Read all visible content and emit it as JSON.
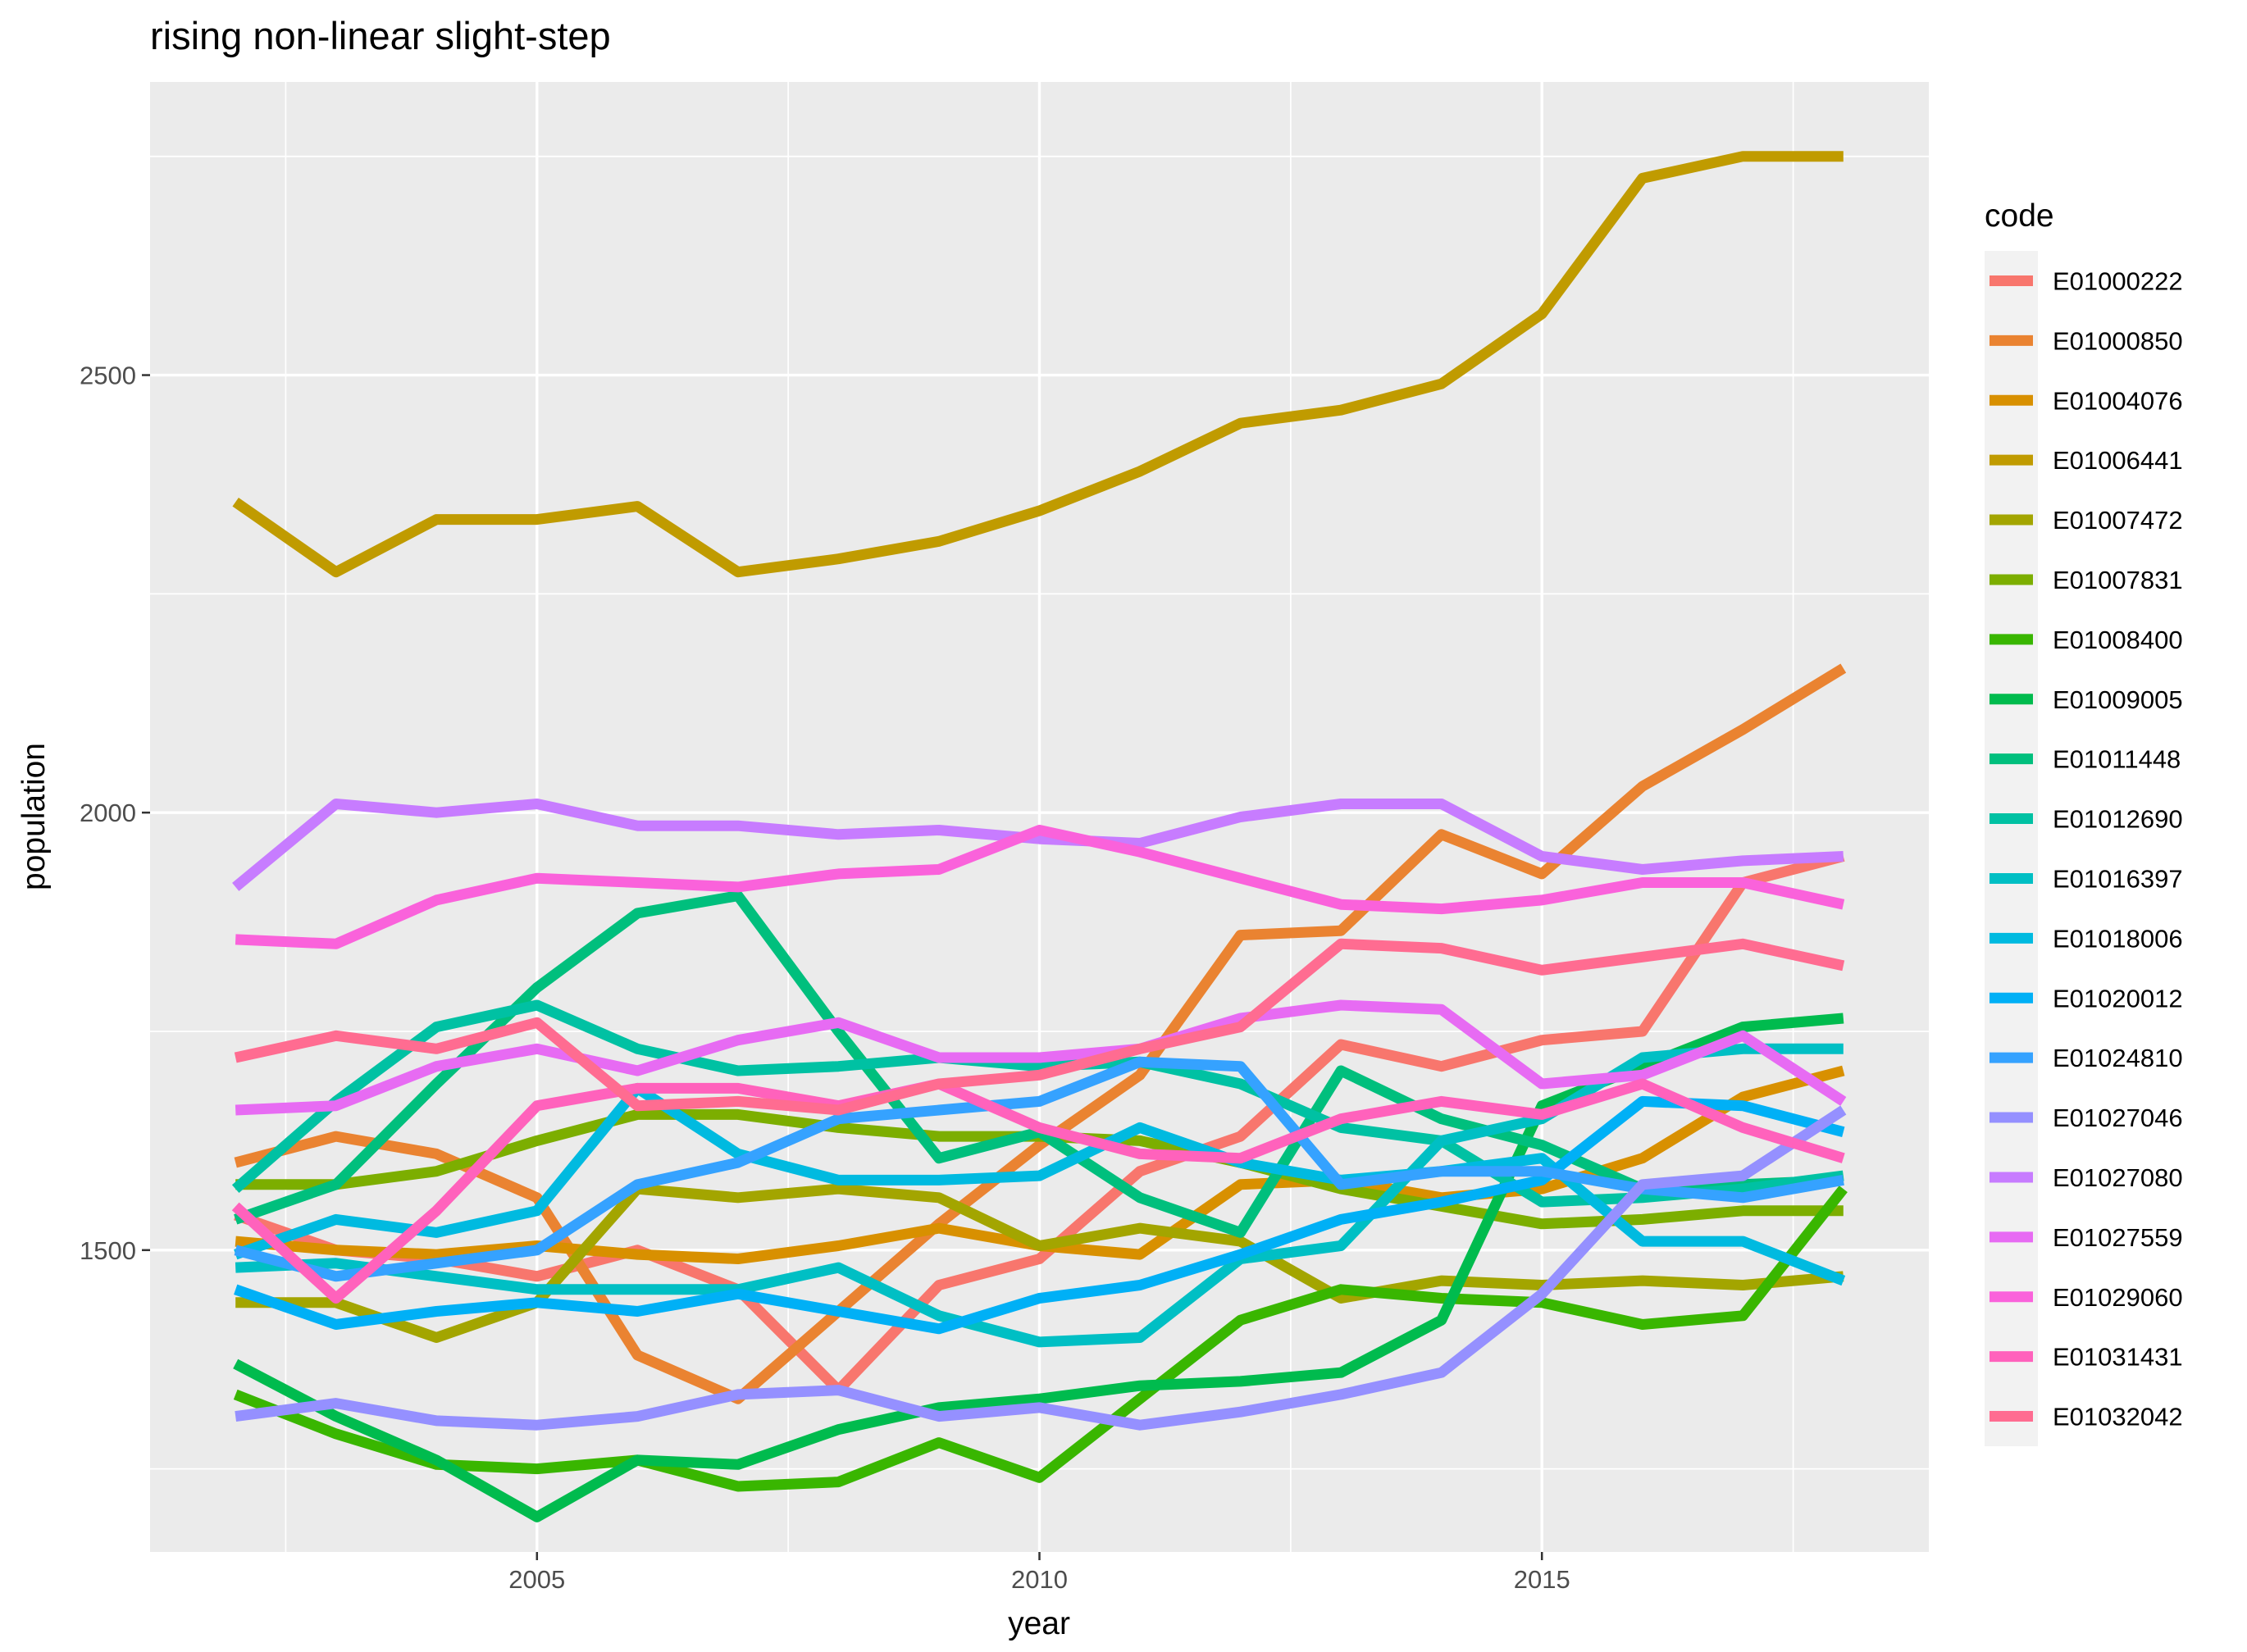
{
  "chart_data": {
    "type": "line",
    "title": "rising non-linear slight-step",
    "xlabel": "year",
    "ylabel": "population",
    "legend_title": "code",
    "legend_position": "right",
    "grid": true,
    "xlim": [
      2001.15,
      2018.85
    ],
    "ylim": [
      1155,
      2835
    ],
    "x_ticks": [
      2005,
      2010,
      2015
    ],
    "y_ticks": [
      1500,
      2000,
      2500
    ],
    "x": [
      2002,
      2003,
      2004,
      2005,
      2006,
      2007,
      2008,
      2009,
      2010,
      2011,
      2012,
      2013,
      2014,
      2015,
      2016,
      2017,
      2018
    ],
    "series": [
      {
        "name": "E01000222",
        "color": "#F8766D",
        "values": [
          1540,
          1500,
          1490,
          1470,
          1500,
          1455,
          1340,
          1460,
          1490,
          1590,
          1630,
          1735,
          1710,
          1740,
          1750,
          1920,
          1950
        ]
      },
      {
        "name": "E01000850",
        "color": "#EA8331",
        "values": [
          1600,
          1630,
          1610,
          1560,
          1380,
          1330,
          1430,
          1530,
          1620,
          1700,
          1860,
          1865,
          1975,
          1930,
          2030,
          2095,
          2165
        ]
      },
      {
        "name": "E01004076",
        "color": "#D89000",
        "values": [
          1510,
          1500,
          1495,
          1505,
          1495,
          1490,
          1505,
          1525,
          1505,
          1495,
          1575,
          1580,
          1560,
          1570,
          1605,
          1675,
          1705
        ]
      },
      {
        "name": "E01006441",
        "color": "#C09B00",
        "values": [
          2355,
          2275,
          2335,
          2335,
          2350,
          2275,
          2290,
          2310,
          2345,
          2390,
          2445,
          2460,
          2490,
          2570,
          2725,
          2750,
          2750
        ]
      },
      {
        "name": "E01007472",
        "color": "#A3A500",
        "values": [
          1440,
          1440,
          1400,
          1440,
          1570,
          1560,
          1570,
          1560,
          1505,
          1525,
          1510,
          1445,
          1465,
          1460,
          1465,
          1460,
          1470
        ]
      },
      {
        "name": "E01007831",
        "color": "#7CAE00",
        "values": [
          1575,
          1575,
          1590,
          1625,
          1655,
          1655,
          1640,
          1630,
          1630,
          1625,
          1600,
          1570,
          1550,
          1530,
          1535,
          1545,
          1545
        ]
      },
      {
        "name": "E01008400",
        "color": "#39B600",
        "values": [
          1335,
          1290,
          1255,
          1250,
          1260,
          1230,
          1235,
          1280,
          1240,
          1330,
          1420,
          1455,
          1445,
          1440,
          1415,
          1425,
          1570
        ]
      },
      {
        "name": "E01009005",
        "color": "#00BB4E",
        "values": [
          1370,
          1310,
          1260,
          1195,
          1260,
          1255,
          1295,
          1320,
          1330,
          1345,
          1350,
          1360,
          1420,
          1665,
          1710,
          1755,
          1765
        ]
      },
      {
        "name": "E01011448",
        "color": "#00BF7D",
        "values": [
          1535,
          1575,
          1690,
          1800,
          1885,
          1905,
          1750,
          1605,
          1635,
          1560,
          1520,
          1705,
          1650,
          1620,
          1570,
          1575,
          1580
        ]
      },
      {
        "name": "E01012690",
        "color": "#00C1A3",
        "values": [
          1570,
          1670,
          1755,
          1780,
          1730,
          1705,
          1710,
          1720,
          1710,
          1715,
          1690,
          1640,
          1625,
          1555,
          1560,
          1570,
          1585
        ]
      },
      {
        "name": "E01016397",
        "color": "#00BFC4",
        "values": [
          1480,
          1485,
          1470,
          1455,
          1455,
          1455,
          1480,
          1425,
          1395,
          1400,
          1490,
          1505,
          1625,
          1650,
          1720,
          1730,
          1730
        ]
      },
      {
        "name": "E01018006",
        "color": "#00BAE0",
        "values": [
          1495,
          1535,
          1520,
          1545,
          1685,
          1610,
          1580,
          1580,
          1585,
          1640,
          1600,
          1580,
          1590,
          1605,
          1510,
          1510,
          1465
        ]
      },
      {
        "name": "E01020012",
        "color": "#00B0F6",
        "values": [
          1455,
          1415,
          1430,
          1440,
          1430,
          1450,
          1430,
          1410,
          1445,
          1460,
          1495,
          1535,
          1555,
          1580,
          1670,
          1665,
          1635
        ]
      },
      {
        "name": "E01024810",
        "color": "#35A2FF",
        "values": [
          1500,
          1470,
          1485,
          1500,
          1575,
          1600,
          1650,
          1660,
          1670,
          1715,
          1710,
          1575,
          1590,
          1590,
          1570,
          1560,
          1580
        ]
      },
      {
        "name": "E01027046",
        "color": "#9590FF",
        "values": [
          1310,
          1325,
          1305,
          1300,
          1310,
          1335,
          1340,
          1310,
          1320,
          1300,
          1315,
          1335,
          1360,
          1450,
          1575,
          1585,
          1660
        ]
      },
      {
        "name": "E01027080",
        "color": "#C77CFF",
        "values": [
          1915,
          2010,
          2000,
          2010,
          1985,
          1985,
          1975,
          1980,
          1970,
          1965,
          1995,
          2010,
          2010,
          1950,
          1935,
          1945,
          1950
        ]
      },
      {
        "name": "E01027559",
        "color": "#E76BF3",
        "values": [
          1660,
          1665,
          1710,
          1730,
          1705,
          1740,
          1760,
          1720,
          1720,
          1730,
          1765,
          1780,
          1775,
          1690,
          1700,
          1745,
          1670
        ]
      },
      {
        "name": "E01029060",
        "color": "#FA62DB",
        "values": [
          1855,
          1850,
          1900,
          1925,
          1920,
          1915,
          1930,
          1935,
          1980,
          1955,
          1925,
          1895,
          1890,
          1900,
          1920,
          1920,
          1895
        ]
      },
      {
        "name": "E01031431",
        "color": "#FF62BC",
        "values": [
          1550,
          1445,
          1545,
          1665,
          1685,
          1685,
          1665,
          1690,
          1640,
          1610,
          1605,
          1650,
          1670,
          1655,
          1690,
          1640,
          1605
        ]
      },
      {
        "name": "E01032042",
        "color": "#FF6C91",
        "values": [
          1720,
          1745,
          1730,
          1760,
          1665,
          1670,
          1660,
          1690,
          1700,
          1730,
          1755,
          1850,
          1845,
          1820,
          1835,
          1850,
          1825
        ]
      }
    ]
  }
}
